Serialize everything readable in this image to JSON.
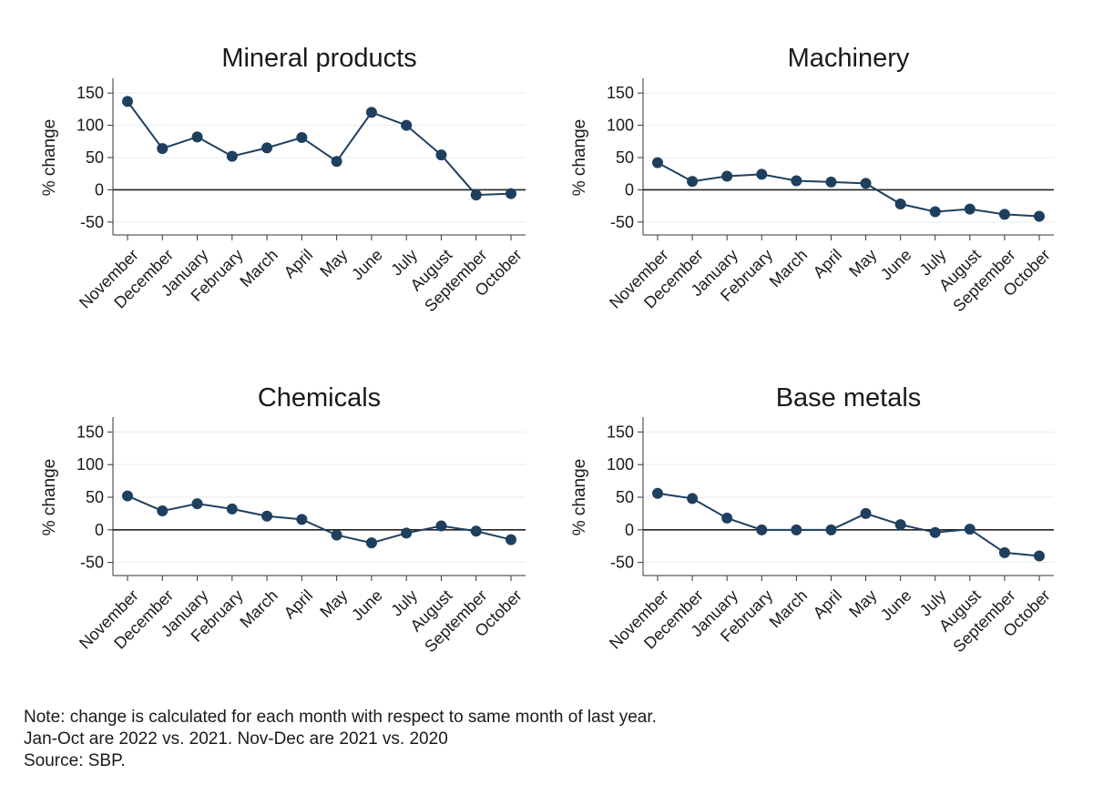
{
  "chart_data": [
    {
      "type": "line",
      "title": "Mineral products",
      "ylabel": "% change",
      "xlabel": "",
      "ylim": [
        -70,
        170
      ],
      "yticks": [
        -50,
        0,
        50,
        100,
        150
      ],
      "categories": [
        "November",
        "December",
        "January",
        "February",
        "March",
        "April",
        "May",
        "June",
        "July",
        "August",
        "September",
        "October"
      ],
      "values": [
        137,
        64,
        82,
        52,
        65,
        81,
        44,
        120,
        100,
        54,
        -8,
        -6
      ],
      "grid": true,
      "color": "#1f3f5f"
    },
    {
      "type": "line",
      "title": "Machinery",
      "ylabel": "% change",
      "xlabel": "",
      "ylim": [
        -70,
        170
      ],
      "yticks": [
        -50,
        0,
        50,
        100,
        150
      ],
      "categories": [
        "November",
        "December",
        "January",
        "February",
        "March",
        "April",
        "May",
        "June",
        "July",
        "August",
        "September",
        "October"
      ],
      "values": [
        42,
        13,
        21,
        24,
        14,
        12,
        10,
        -22,
        -34,
        -30,
        -38,
        -41
      ],
      "grid": true,
      "color": "#1f3f5f"
    },
    {
      "type": "line",
      "title": "Chemicals",
      "ylabel": "% change",
      "xlabel": "",
      "ylim": [
        -70,
        170
      ],
      "yticks": [
        -50,
        0,
        50,
        100,
        150
      ],
      "categories": [
        "November",
        "December",
        "January",
        "February",
        "March",
        "April",
        "May",
        "June",
        "July",
        "August",
        "September",
        "October"
      ],
      "values": [
        52,
        29,
        40,
        32,
        21,
        16,
        -8,
        -20,
        -5,
        6,
        -2,
        -15
      ],
      "grid": true,
      "color": "#1f3f5f"
    },
    {
      "type": "line",
      "title": "Base metals",
      "ylabel": "% change",
      "xlabel": "",
      "ylim": [
        -70,
        170
      ],
      "yticks": [
        -50,
        0,
        50,
        100,
        150
      ],
      "categories": [
        "November",
        "December",
        "January",
        "February",
        "March",
        "April",
        "May",
        "June",
        "July",
        "August",
        "September",
        "October"
      ],
      "values": [
        56,
        48,
        18,
        0,
        0,
        0,
        25,
        8,
        -4,
        1,
        -35,
        -40
      ],
      "grid": true,
      "color": "#1f3f5f"
    }
  ],
  "note": {
    "line1": "Note: change is calculated for each month with respect to same month of last year.",
    "line2": "Jan-Oct are 2022 vs. 2021. Nov-Dec are 2021 vs. 2020",
    "line3": "Source: SBP."
  }
}
